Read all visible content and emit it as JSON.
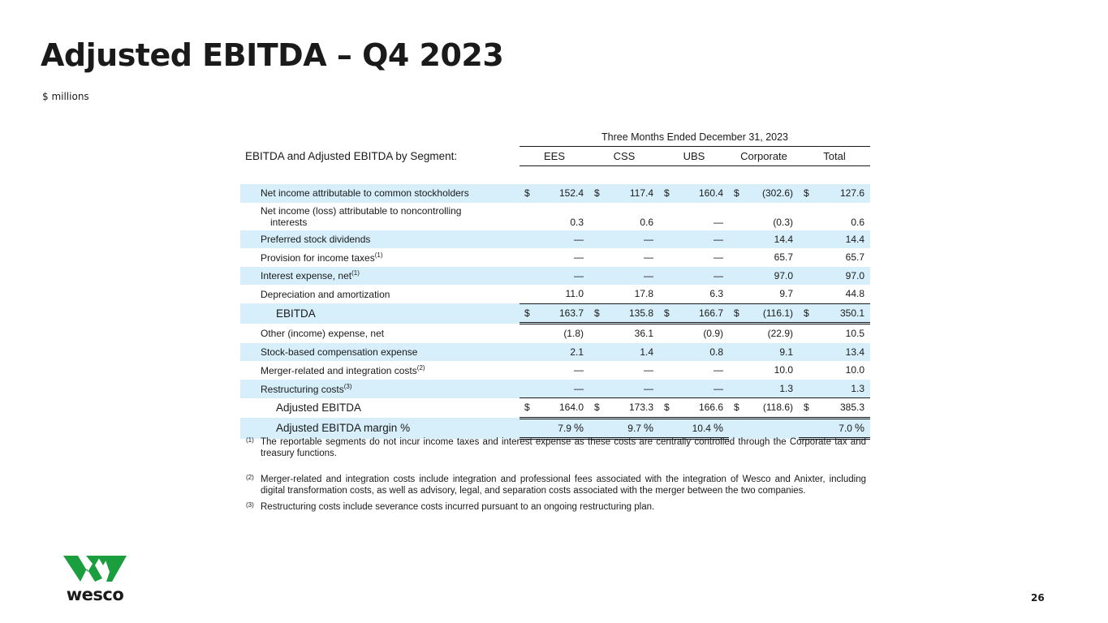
{
  "slide": {
    "title": "Adjusted EBITDA – Q4 2023",
    "subtitle": "$ millions",
    "page_number": "26"
  },
  "table": {
    "period_header": "Three Months Ended December 31, 2023",
    "segment_title": "EBITDA and Adjusted EBITDA by Segment:",
    "columns": [
      "EES",
      "CSS",
      "UBS",
      "Corporate",
      "Total"
    ],
    "currency_symbol": "$",
    "rows": {
      "net_income": {
        "label": "Net income attributable to common stockholders",
        "values": [
          "152.4",
          "117.4",
          "160.4",
          "(302.6)",
          "127.6"
        ]
      },
      "noncontrolling": {
        "label_line1": "Net income (loss) attributable to noncontrolling",
        "label_line2": "interests",
        "values": [
          "0.3",
          "0.6",
          "—",
          "(0.3)",
          "0.6"
        ]
      },
      "preferred": {
        "label": "Preferred stock dividends",
        "values": [
          "—",
          "—",
          "—",
          "14.4",
          "14.4"
        ]
      },
      "taxes": {
        "label": "Provision for income taxes",
        "note": "(1)",
        "values": [
          "—",
          "—",
          "—",
          "65.7",
          "65.7"
        ]
      },
      "interest": {
        "label": "Interest expense, net",
        "note": "(1)",
        "values": [
          "—",
          "—",
          "—",
          "97.0",
          "97.0"
        ]
      },
      "depreciation": {
        "label": "Depreciation and amortization",
        "values": [
          "11.0",
          "17.8",
          "6.3",
          "9.7",
          "44.8"
        ]
      },
      "ebitda": {
        "label": "EBITDA",
        "values": [
          "163.7",
          "135.8",
          "166.7",
          "(116.1)",
          "350.1"
        ]
      },
      "other": {
        "label": "Other (income) expense, net",
        "values": [
          "(1.8)",
          "36.1",
          "(0.9)",
          "(22.9)",
          "10.5"
        ]
      },
      "stock_comp": {
        "label": "Stock-based compensation expense",
        "values": [
          "2.1",
          "1.4",
          "0.8",
          "9.1",
          "13.4"
        ]
      },
      "merger": {
        "label": "Merger-related and integration costs",
        "note": "(2)",
        "values": [
          "—",
          "—",
          "—",
          "10.0",
          "10.0"
        ]
      },
      "restructuring": {
        "label": "Restructuring costs",
        "note": "(3)",
        "values": [
          "—",
          "—",
          "—",
          "1.3",
          "1.3"
        ]
      },
      "adj_ebitda": {
        "label": "Adjusted EBITDA",
        "values": [
          "164.0",
          "173.3",
          "166.6",
          "(118.6)",
          "385.3"
        ]
      },
      "margin": {
        "label": "Adjusted EBITDA margin %",
        "values": [
          "7.9",
          "9.7",
          "10.4",
          "",
          "7.0"
        ],
        "percent_sign": "%"
      }
    }
  },
  "footnotes": [
    {
      "marker": "(1)",
      "text": "The reportable segments do not incur income taxes and interest expense as these costs are centrally controlled through the Corporate tax and treasury functions."
    },
    {
      "marker": "(2)",
      "text": "Merger-related and integration costs include integration and professional fees associated with the integration of Wesco and Anixter, including digital transformation costs, as well as advisory, legal, and separation costs associated with the merger between the two companies."
    },
    {
      "marker": "(3)",
      "text": "Restructuring costs include severance costs incurred pursuant to an ongoing restructuring plan."
    }
  ],
  "logo": {
    "wordmark": "wesco",
    "color": "#1b9e3e"
  },
  "colors": {
    "row_shade": "#d7effa",
    "text": "#1a1a1a"
  }
}
